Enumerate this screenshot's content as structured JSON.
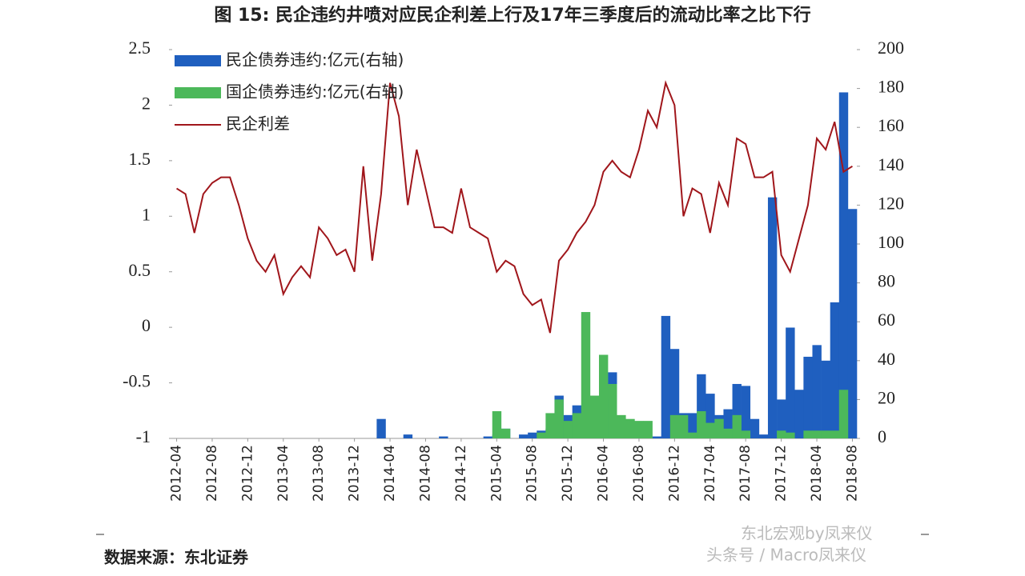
{
  "chart_data": {
    "type": "bar-line",
    "title": "图 15: 民企违约井喷对应民企利差上行及17年三季度后的流动比率之比下行",
    "source": "数据来源：东北证券",
    "watermark": [
      "东北宏观by凤来仪",
      "头条号 / Macro凤来仪"
    ],
    "categories": [
      "2012-04",
      null,
      null,
      null,
      "2012-08",
      null,
      null,
      null,
      "2012-12",
      null,
      null,
      null,
      "2013-04",
      null,
      null,
      null,
      "2013-08",
      null,
      null,
      null,
      "2013-12",
      null,
      null,
      null,
      "2014-04",
      null,
      null,
      null,
      "2014-08",
      null,
      null,
      null,
      "2014-12",
      null,
      null,
      null,
      "2015-04",
      null,
      null,
      null,
      "2015-08",
      null,
      null,
      null,
      "2015-12",
      null,
      null,
      null,
      "2016-04",
      null,
      null,
      null,
      "2016-08",
      null,
      null,
      null,
      "2016-12",
      null,
      null,
      null,
      "2017-04",
      null,
      null,
      null,
      "2017-08",
      null,
      null,
      null,
      "2017-12",
      null,
      null,
      null,
      "2018-04",
      null,
      null,
      null,
      "2018-08"
    ],
    "series": [
      {
        "name": "民企债券违约:亿元(右轴)",
        "kind": "bar",
        "axis": "y2",
        "color": "#1f5fbf",
        "values": [
          0,
          0,
          0,
          0,
          0,
          0,
          0,
          0,
          0,
          0,
          0,
          0,
          0,
          0,
          0,
          0,
          0,
          0,
          0,
          0,
          0,
          0,
          0,
          10,
          0,
          0,
          2,
          0,
          0,
          0,
          1,
          0,
          0,
          0,
          0,
          1,
          2,
          5,
          0,
          2,
          3,
          4,
          5,
          22,
          12,
          17,
          0,
          0,
          20,
          34,
          8,
          0,
          0,
          0,
          1,
          63,
          46,
          13,
          13,
          33,
          23,
          12,
          15,
          28,
          27,
          10,
          2,
          124,
          20,
          57,
          25,
          42,
          48,
          40,
          70,
          178,
          118
        ]
      },
      {
        "name": "国企债券违约:亿元(右轴)",
        "kind": "bar",
        "axis": "y2",
        "color": "#4cb85a",
        "values": [
          0,
          0,
          0,
          0,
          0,
          0,
          0,
          0,
          0,
          0,
          0,
          0,
          0,
          0,
          0,
          0,
          0,
          0,
          0,
          0,
          0,
          0,
          0,
          0,
          0,
          0,
          0,
          0,
          0,
          0,
          0,
          0,
          0,
          0,
          0,
          0,
          14,
          5,
          0,
          0,
          0,
          3,
          13,
          20,
          9,
          13,
          65,
          22,
          43,
          28,
          12,
          10,
          9,
          9,
          0,
          0,
          12,
          12,
          3,
          14,
          8,
          10,
          5,
          12,
          4,
          0,
          0,
          0,
          4,
          3,
          0,
          4,
          4,
          4,
          4,
          25,
          0
        ]
      },
      {
        "name": "民企利差",
        "kind": "line",
        "axis": "y",
        "color": "#a0161b",
        "values": [
          1.25,
          1.2,
          0.85,
          1.2,
          1.3,
          1.35,
          1.35,
          1.1,
          0.8,
          0.6,
          0.5,
          0.65,
          0.3,
          0.45,
          0.55,
          0.45,
          0.9,
          0.8,
          0.65,
          0.7,
          0.5,
          1.45,
          0.6,
          1.2,
          2.2,
          1.9,
          1.1,
          1.6,
          1.25,
          0.9,
          0.9,
          0.85,
          1.25,
          0.9,
          0.85,
          0.8,
          0.5,
          0.6,
          0.55,
          0.3,
          0.2,
          0.25,
          -0.05,
          0.6,
          0.7,
          0.85,
          0.95,
          1.1,
          1.4,
          1.5,
          1.4,
          1.35,
          1.6,
          1.95,
          1.8,
          2.2,
          2.0,
          1.0,
          1.25,
          1.2,
          0.85,
          1.3,
          1.1,
          1.7,
          1.65,
          1.35,
          1.35,
          1.4,
          0.65,
          0.5,
          0.8,
          1.1,
          1.7,
          1.6,
          1.85,
          1.4,
          1.45
        ]
      }
    ],
    "ylim": [
      -1,
      2.5
    ],
    "yticks": [
      -1,
      -0.5,
      0,
      0.5,
      1,
      1.5,
      2,
      2.5
    ],
    "y2lim": [
      0,
      200
    ],
    "y2ticks": [
      0,
      20,
      40,
      60,
      80,
      100,
      120,
      140,
      160,
      180,
      200
    ],
    "legend": "top-left"
  }
}
